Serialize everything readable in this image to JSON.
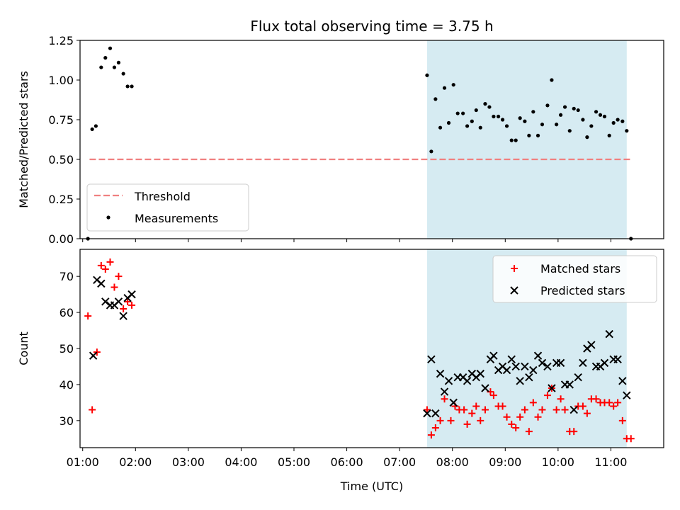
{
  "chart_data": [
    {
      "type": "scatter",
      "title": "Flux total observing time = 3.75 h",
      "xlabel": "",
      "ylabel": "Matched/Predicted stars",
      "ylim": [
        0,
        1.25
      ],
      "yticks": [
        "0.00",
        "0.25",
        "0.50",
        "0.75",
        "1.00",
        "1.25"
      ],
      "xlim_hours": [
        0.95,
        12.0
      ],
      "shaded_span_hours": [
        7.52,
        11.3
      ],
      "legend": {
        "placement": "lower-left",
        "entries": [
          "Threshold",
          "Measurements"
        ]
      },
      "threshold": {
        "name": "Threshold",
        "value": 0.5,
        "x_range_hours": [
          1.13,
          11.38
        ],
        "color": "#f08080"
      },
      "series": [
        {
          "name": "Measurements",
          "color": "#000000",
          "points": [
            [
              1.1,
              0.0
            ],
            [
              1.18,
              0.69
            ],
            [
              1.25,
              0.71
            ],
            [
              1.35,
              1.08
            ],
            [
              1.43,
              1.14
            ],
            [
              1.52,
              1.2
            ],
            [
              1.6,
              1.08
            ],
            [
              1.68,
              1.11
            ],
            [
              1.77,
              1.04
            ],
            [
              1.85,
              0.96
            ],
            [
              1.93,
              0.96
            ],
            [
              7.52,
              1.03
            ],
            [
              7.6,
              0.55
            ],
            [
              7.68,
              0.88
            ],
            [
              7.77,
              0.7
            ],
            [
              7.85,
              0.95
            ],
            [
              7.93,
              0.73
            ],
            [
              8.02,
              0.97
            ],
            [
              8.1,
              0.79
            ],
            [
              8.2,
              0.79
            ],
            [
              8.28,
              0.71
            ],
            [
              8.37,
              0.74
            ],
            [
              8.45,
              0.81
            ],
            [
              8.53,
              0.7
            ],
            [
              8.62,
              0.85
            ],
            [
              8.7,
              0.83
            ],
            [
              8.78,
              0.77
            ],
            [
              8.87,
              0.77
            ],
            [
              8.95,
              0.75
            ],
            [
              9.03,
              0.71
            ],
            [
              9.12,
              0.62
            ],
            [
              9.2,
              0.62
            ],
            [
              9.28,
              0.76
            ],
            [
              9.37,
              0.74
            ],
            [
              9.45,
              0.65
            ],
            [
              9.53,
              0.8
            ],
            [
              9.62,
              0.65
            ],
            [
              9.7,
              0.72
            ],
            [
              9.8,
              0.84
            ],
            [
              9.88,
              1.0
            ],
            [
              9.97,
              0.72
            ],
            [
              10.05,
              0.78
            ],
            [
              10.13,
              0.83
            ],
            [
              10.22,
              0.68
            ],
            [
              10.3,
              0.82
            ],
            [
              10.38,
              0.81
            ],
            [
              10.47,
              0.75
            ],
            [
              10.55,
              0.64
            ],
            [
              10.63,
              0.71
            ],
            [
              10.72,
              0.8
            ],
            [
              10.8,
              0.78
            ],
            [
              10.88,
              0.77
            ],
            [
              10.97,
              0.65
            ],
            [
              11.05,
              0.73
            ],
            [
              11.13,
              0.75
            ],
            [
              11.22,
              0.74
            ],
            [
              11.3,
              0.68
            ],
            [
              11.38,
              0.0
            ]
          ]
        }
      ]
    },
    {
      "type": "scatter",
      "title": "",
      "xlabel": "Time (UTC)",
      "ylabel": "Count",
      "ylim": [
        22.5,
        77.5
      ],
      "yticks": [
        "30",
        "40",
        "50",
        "60",
        "70"
      ],
      "xticks": [
        "01:00",
        "02:00",
        "03:00",
        "04:00",
        "05:00",
        "06:00",
        "07:00",
        "08:00",
        "09:00",
        "10:00",
        "11:00"
      ],
      "xlim_hours": [
        0.95,
        12.0
      ],
      "shaded_span_hours": [
        7.52,
        11.3
      ],
      "legend": {
        "placement": "top-right",
        "entries": [
          "Matched stars",
          "Predicted stars"
        ]
      },
      "series": [
        {
          "name": "Matched stars",
          "marker": "plus",
          "color": "#ff0000",
          "points": [
            [
              1.1,
              59
            ],
            [
              1.18,
              33
            ],
            [
              1.27,
              49
            ],
            [
              1.35,
              73
            ],
            [
              1.43,
              72
            ],
            [
              1.52,
              74
            ],
            [
              1.6,
              67
            ],
            [
              1.68,
              70
            ],
            [
              1.77,
              61
            ],
            [
              1.85,
              63
            ],
            [
              1.93,
              62
            ],
            [
              7.52,
              33
            ],
            [
              7.6,
              26
            ],
            [
              7.68,
              28
            ],
            [
              7.77,
              30
            ],
            [
              7.85,
              36
            ],
            [
              7.97,
              30
            ],
            [
              8.05,
              34
            ],
            [
              8.13,
              33
            ],
            [
              8.22,
              33
            ],
            [
              8.28,
              29
            ],
            [
              8.37,
              32
            ],
            [
              8.45,
              34
            ],
            [
              8.53,
              30
            ],
            [
              8.62,
              33
            ],
            [
              8.72,
              38
            ],
            [
              8.78,
              37
            ],
            [
              8.87,
              34
            ],
            [
              8.95,
              34
            ],
            [
              9.03,
              31
            ],
            [
              9.12,
              29
            ],
            [
              9.2,
              28
            ],
            [
              9.28,
              31
            ],
            [
              9.37,
              33
            ],
            [
              9.45,
              27
            ],
            [
              9.53,
              35
            ],
            [
              9.62,
              31
            ],
            [
              9.7,
              33
            ],
            [
              9.8,
              37
            ],
            [
              9.88,
              39
            ],
            [
              9.97,
              33
            ],
            [
              10.05,
              36
            ],
            [
              10.13,
              33
            ],
            [
              10.22,
              27
            ],
            [
              10.3,
              27
            ],
            [
              10.38,
              34
            ],
            [
              10.47,
              34
            ],
            [
              10.55,
              32
            ],
            [
              10.63,
              36
            ],
            [
              10.72,
              36
            ],
            [
              10.8,
              35
            ],
            [
              10.88,
              35
            ],
            [
              10.97,
              35
            ],
            [
              11.05,
              34
            ],
            [
              11.13,
              35
            ],
            [
              11.22,
              30
            ],
            [
              11.3,
              25
            ],
            [
              11.38,
              25
            ]
          ]
        },
        {
          "name": "Predicted stars",
          "marker": "x",
          "color": "#000000",
          "points": [
            [
              1.2,
              48
            ],
            [
              1.27,
              69
            ],
            [
              1.35,
              68
            ],
            [
              1.43,
              63
            ],
            [
              1.52,
              62
            ],
            [
              1.6,
              62
            ],
            [
              1.68,
              63
            ],
            [
              1.77,
              59
            ],
            [
              1.85,
              64
            ],
            [
              1.93,
              65
            ],
            [
              7.52,
              32
            ],
            [
              7.6,
              47
            ],
            [
              7.68,
              32
            ],
            [
              7.77,
              43
            ],
            [
              7.85,
              38
            ],
            [
              7.93,
              41
            ],
            [
              8.02,
              35
            ],
            [
              8.1,
              42
            ],
            [
              8.2,
              42
            ],
            [
              8.28,
              41
            ],
            [
              8.37,
              43
            ],
            [
              8.45,
              42
            ],
            [
              8.53,
              43
            ],
            [
              8.62,
              39
            ],
            [
              8.72,
              47
            ],
            [
              8.78,
              48
            ],
            [
              8.87,
              44
            ],
            [
              8.95,
              45
            ],
            [
              9.03,
              44
            ],
            [
              9.12,
              47
            ],
            [
              9.2,
              45
            ],
            [
              9.28,
              41
            ],
            [
              9.37,
              45
            ],
            [
              9.45,
              42
            ],
            [
              9.53,
              44
            ],
            [
              9.62,
              48
            ],
            [
              9.7,
              46
            ],
            [
              9.8,
              45
            ],
            [
              9.88,
              39
            ],
            [
              9.97,
              46
            ],
            [
              10.05,
              46
            ],
            [
              10.13,
              40
            ],
            [
              10.22,
              40
            ],
            [
              10.3,
              33
            ],
            [
              10.38,
              42
            ],
            [
              10.47,
              46
            ],
            [
              10.55,
              50
            ],
            [
              10.63,
              51
            ],
            [
              10.72,
              45
            ],
            [
              10.8,
              45
            ],
            [
              10.88,
              46
            ],
            [
              10.97,
              54
            ],
            [
              11.05,
              47
            ],
            [
              11.13,
              47
            ],
            [
              11.22,
              41
            ],
            [
              11.3,
              37
            ]
          ]
        }
      ]
    }
  ]
}
